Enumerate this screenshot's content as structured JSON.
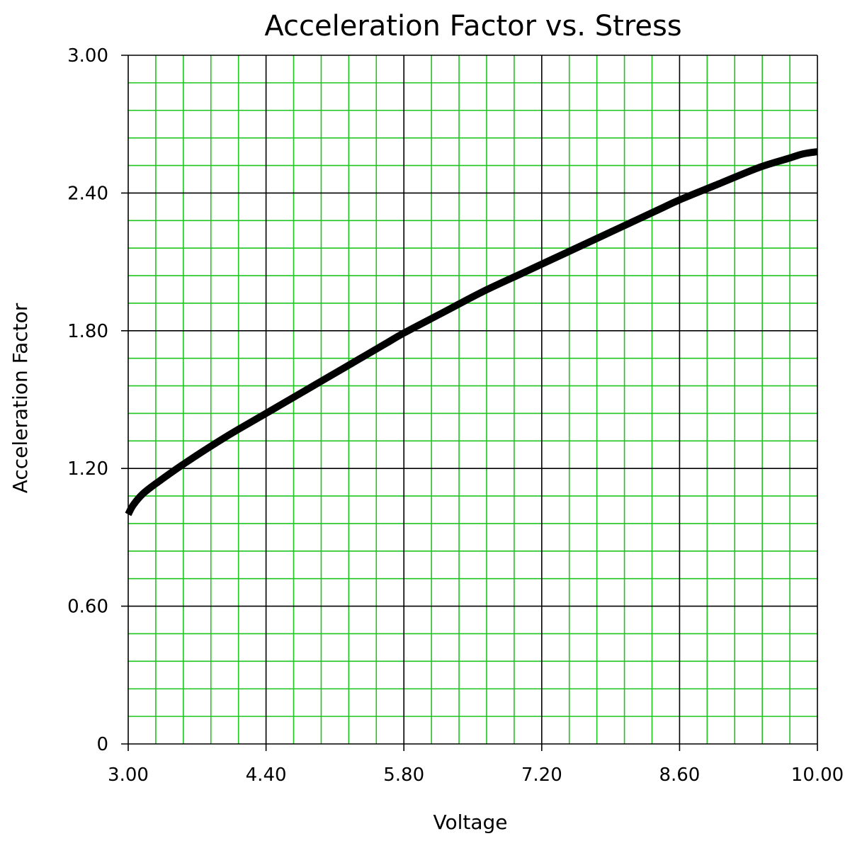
{
  "chart_data": {
    "type": "line",
    "title": "Acceleration Factor vs. Stress",
    "xlabel": "Voltage",
    "ylabel": "Acceleration Factor",
    "xlim": [
      3.0,
      10.0
    ],
    "ylim": [
      0,
      3.0
    ],
    "x_major_ticks": [
      3.0,
      4.4,
      5.8,
      7.2,
      8.6,
      10.0
    ],
    "x_tick_labels": [
      "3.00",
      "4.40",
      "5.80",
      "7.20",
      "8.60",
      "10.00"
    ],
    "y_major_ticks": [
      0,
      0.6,
      1.2,
      1.8,
      2.4,
      3.0
    ],
    "y_tick_labels": [
      "0",
      "0.60",
      "1.20",
      "1.80",
      "2.40",
      "3.00"
    ],
    "x_minor_step": 0.28,
    "y_minor_step": 0.12,
    "grid": true,
    "legend": "none",
    "colors": {
      "minor_grid": "#1ec51e",
      "major_grid": "#000000",
      "curve": "#000000"
    },
    "series": [
      {
        "x": [
          3.0,
          3.05,
          3.15,
          3.3,
          3.6,
          4.0,
          4.4,
          4.8,
          5.2,
          5.6,
          5.8,
          6.2,
          6.6,
          7.0,
          7.2,
          7.6,
          8.0,
          8.4,
          8.6,
          9.0,
          9.4,
          9.7,
          9.85,
          10.0
        ],
        "y": [
          1.0,
          1.04,
          1.09,
          1.14,
          1.23,
          1.34,
          1.44,
          1.54,
          1.64,
          1.74,
          1.79,
          1.88,
          1.97,
          2.05,
          2.09,
          2.17,
          2.25,
          2.33,
          2.37,
          2.44,
          2.51,
          2.55,
          2.57,
          2.58
        ]
      }
    ]
  }
}
